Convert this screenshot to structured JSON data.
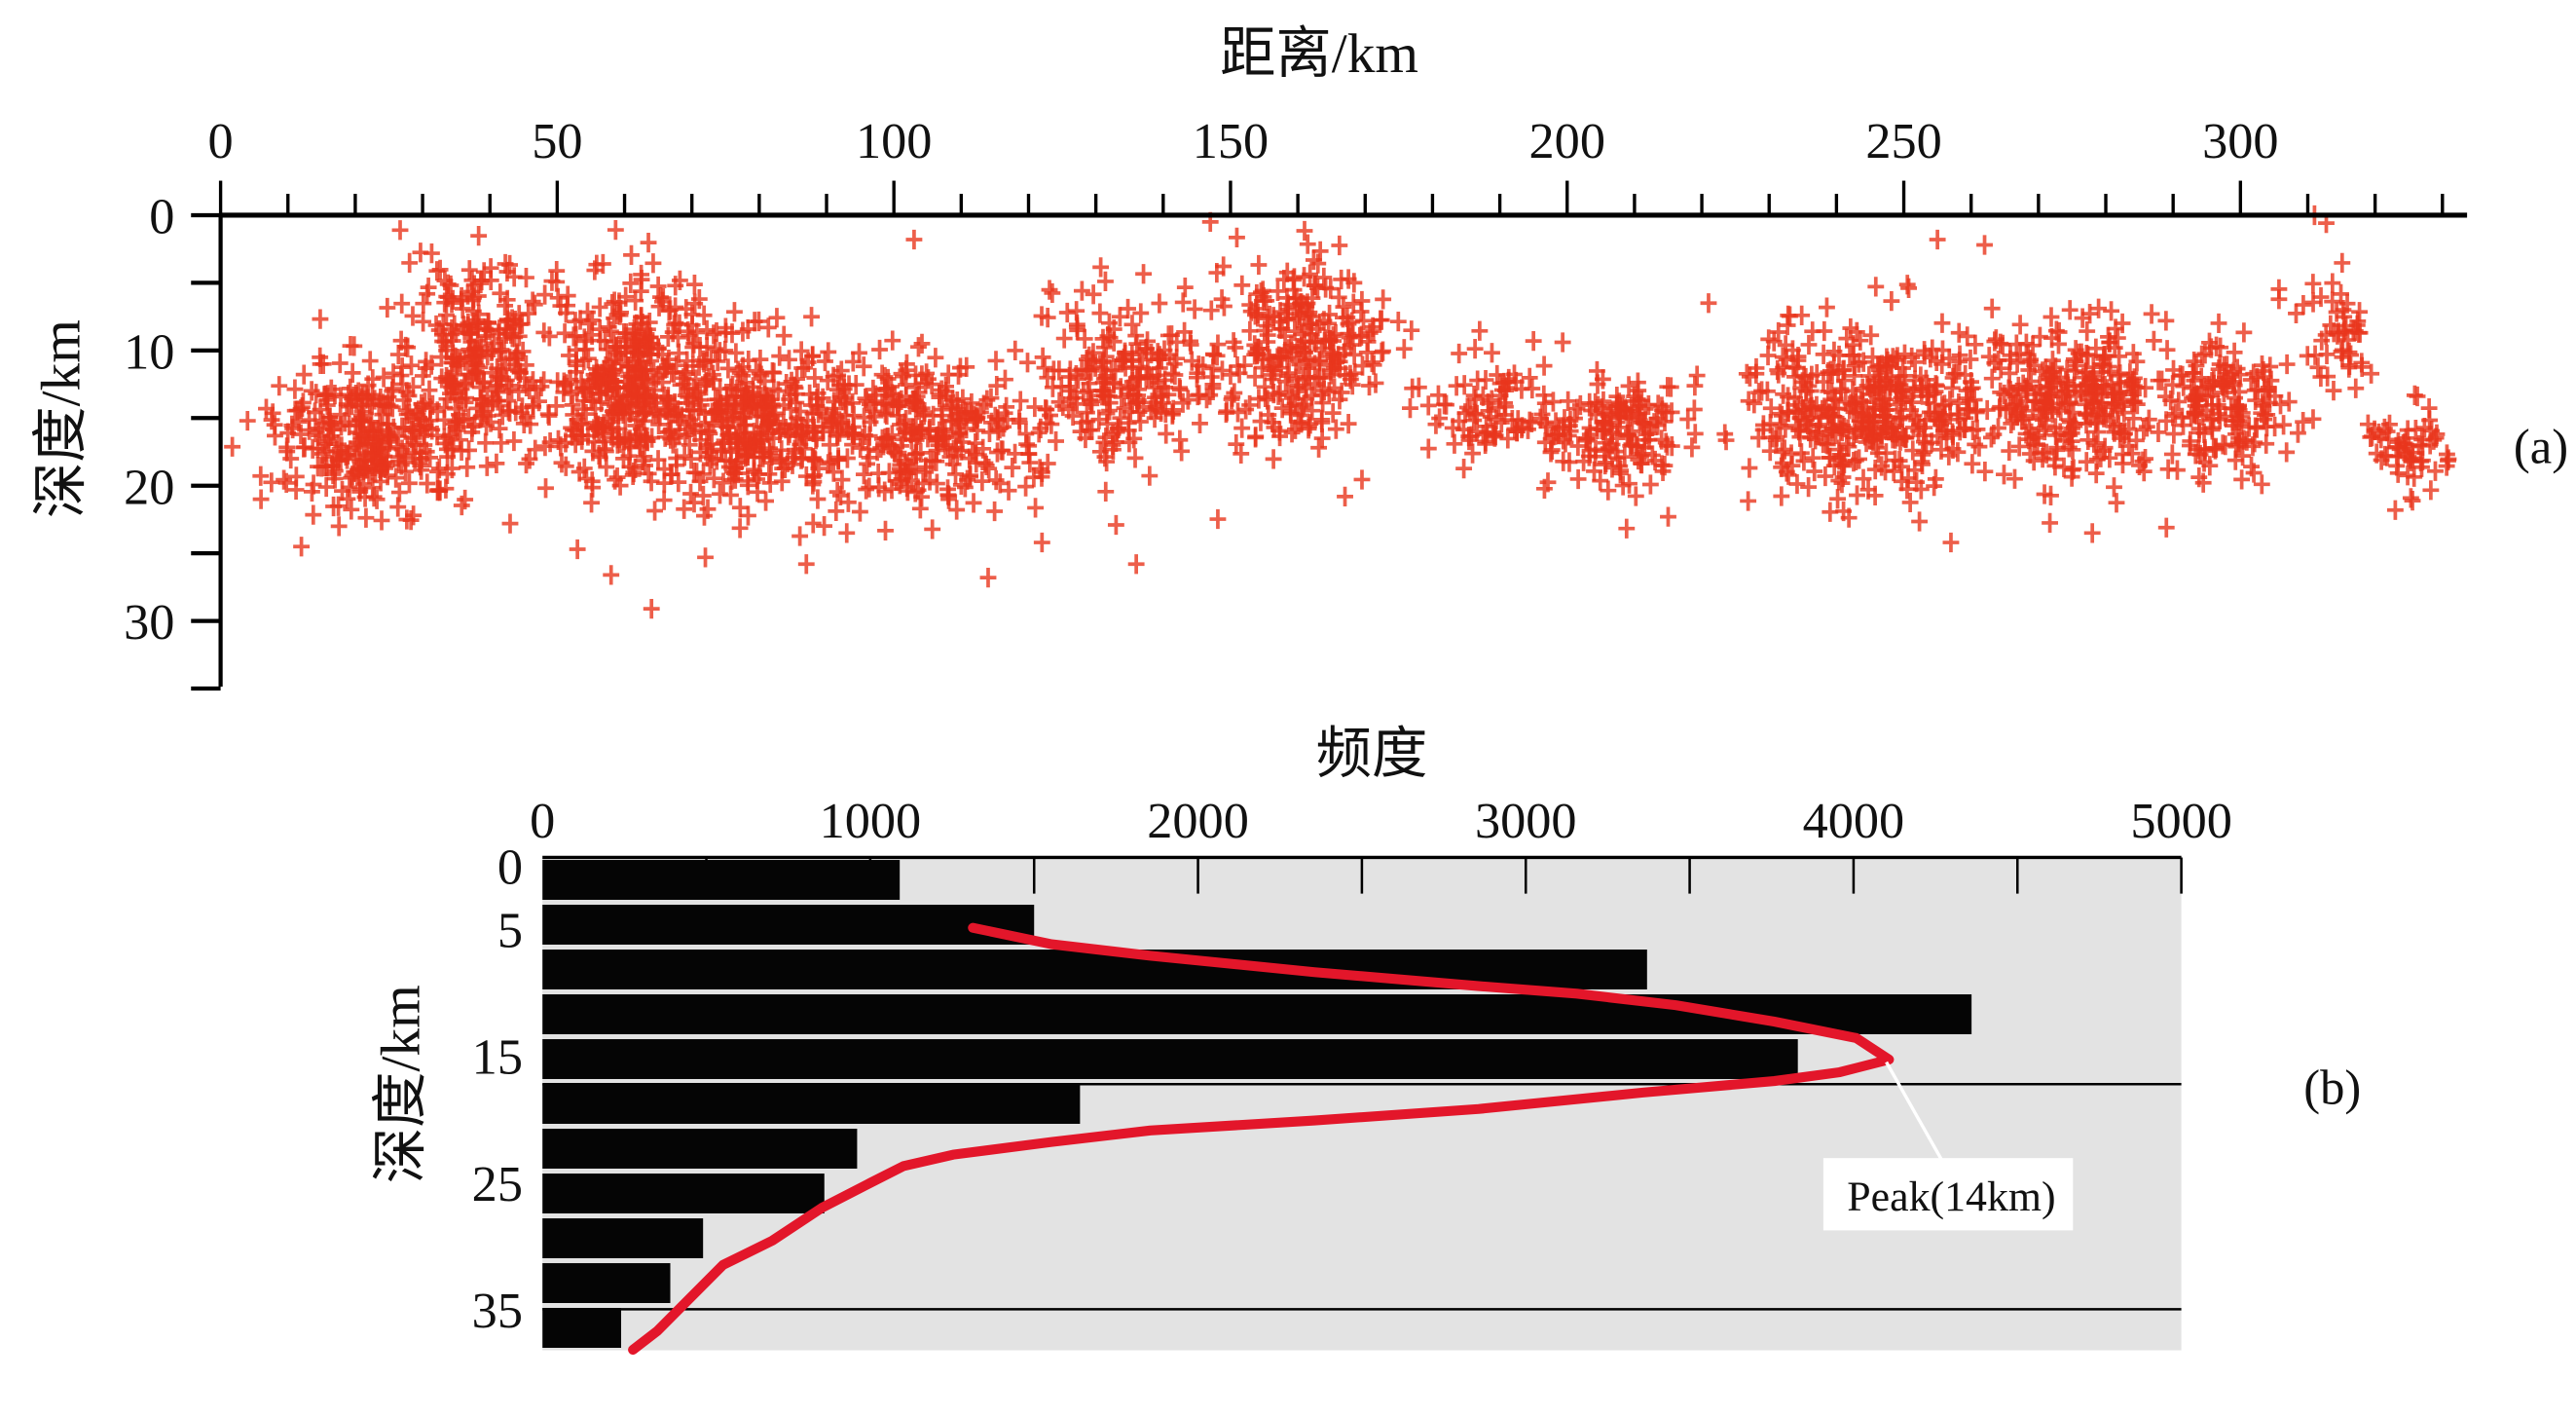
{
  "chart_data": [
    {
      "type": "scatter",
      "panel_label": "(a)",
      "title": "距离/km",
      "xlabel": "距离/km",
      "ylabel": "深度/km",
      "xlim": [
        0,
        333
      ],
      "ylim": [
        0,
        35
      ],
      "y_inverted": true,
      "x_axis_position": "top",
      "xticks": [
        "0",
        "50",
        "100",
        "150",
        "200",
        "250",
        "300"
      ],
      "yticks": [
        "0",
        "10",
        "20",
        "30"
      ],
      "marker": "+",
      "color": "#e8361d",
      "clusters": [
        {
          "x": 22,
          "depth": 16.5,
          "sx": 7,
          "sd": 2.6,
          "n": 320
        },
        {
          "x": 38,
          "depth": 10,
          "sx": 5,
          "sd": 3.5,
          "n": 240
        },
        {
          "x": 60,
          "depth": 12.5,
          "sx": 7,
          "sd": 4,
          "n": 450
        },
        {
          "x": 80,
          "depth": 15,
          "sx": 7,
          "sd": 3,
          "n": 320
        },
        {
          "x": 103,
          "depth": 16,
          "sx": 9,
          "sd": 2.8,
          "n": 330
        },
        {
          "x": 135,
          "depth": 12.5,
          "sx": 7,
          "sd": 3.2,
          "n": 230
        },
        {
          "x": 160,
          "depth": 10,
          "sx": 6,
          "sd": 3.5,
          "n": 280
        },
        {
          "x": 188,
          "depth": 14.5,
          "sx": 5,
          "sd": 2,
          "n": 90
        },
        {
          "x": 207,
          "depth": 16,
          "sx": 5,
          "sd": 2,
          "n": 160
        },
        {
          "x": 245,
          "depth": 14.5,
          "sx": 9,
          "sd": 3,
          "n": 430
        },
        {
          "x": 275,
          "depth": 13.5,
          "sx": 8,
          "sd": 2.8,
          "n": 320
        },
        {
          "x": 298,
          "depth": 14,
          "sx": 5,
          "sd": 2.5,
          "n": 160
        },
        {
          "x": 314,
          "depth": 9,
          "sx": 3,
          "sd": 3,
          "n": 50
        },
        {
          "x": 325,
          "depth": 17,
          "sx": 3,
          "sd": 1.5,
          "n": 60
        }
      ],
      "outliers": [
        [
          4,
          15.2
        ],
        [
          6,
          21
        ],
        [
          12,
          24.5
        ],
        [
          43,
          22.8
        ],
        [
          53,
          24.7
        ],
        [
          58,
          26.6
        ],
        [
          64,
          29.1
        ],
        [
          72,
          25.3
        ],
        [
          87,
          25.8
        ],
        [
          93,
          23.5
        ],
        [
          103,
          1.8
        ],
        [
          114,
          26.8
        ],
        [
          122,
          24.2
        ],
        [
          133,
          22.9
        ],
        [
          136,
          25.8
        ],
        [
          147,
          0.5
        ],
        [
          167,
          20.8
        ],
        [
          177,
          12.8
        ],
        [
          195,
          9.3
        ],
        [
          215,
          22.3
        ],
        [
          221,
          6.5
        ],
        [
          255,
          1.8
        ],
        [
          262,
          2.2
        ],
        [
          257,
          24.2
        ],
        [
          278,
          23.5
        ],
        [
          289,
          23.1
        ],
        [
          311,
          0
        ],
        [
          332,
          17.2
        ],
        [
          323,
          21.8
        ]
      ]
    },
    {
      "type": "bar",
      "orientation": "horizontal",
      "panel_label": "(b)",
      "title": "频度",
      "xlabel": "频度",
      "ylabel": "深度/km",
      "xlim": [
        0,
        5000
      ],
      "ylim": [
        0,
        38.5
      ],
      "y_inverted": true,
      "xticks": [
        "0",
        "1000",
        "2000",
        "3000",
        "4000",
        "5000"
      ],
      "yticks": [
        {
          "label": "0",
          "value": 0
        },
        {
          "label": "5",
          "value": 5
        },
        {
          "label": "15",
          "value": 15
        },
        {
          "label": "25",
          "value": 25
        },
        {
          "label": "35",
          "value": 35
        }
      ],
      "bin_width_km": 3.5,
      "categories": [
        "0-3.5",
        "3.5-7",
        "7-10.5",
        "10.5-14",
        "14-17.5",
        "17.5-21",
        "21-24.5",
        "24.5-28",
        "28-31.5",
        "31.5-35",
        "35-38.5"
      ],
      "values": [
        1090,
        1500,
        3370,
        4360,
        3830,
        1640,
        960,
        860,
        490,
        390,
        240
      ],
      "bar_color": "#050505",
      "background_color": "#e3e3e3",
      "curve": {
        "color": "#e3162a",
        "points": [
          [
            1313,
            4.9
          ],
          [
            1553,
            6.2
          ],
          [
            1854,
            7.1
          ],
          [
            2355,
            8.4
          ],
          [
            2856,
            9.5
          ],
          [
            3156,
            10.1
          ],
          [
            3457,
            11.0
          ],
          [
            3758,
            12.3
          ],
          [
            4008,
            13.6
          ],
          [
            4108,
            15.3
          ],
          [
            3958,
            16.3
          ],
          [
            3758,
            17.0
          ],
          [
            3357,
            17.9
          ],
          [
            2856,
            19.2
          ],
          [
            2355,
            20.1
          ],
          [
            1854,
            20.9
          ],
          [
            1553,
            21.8
          ],
          [
            1253,
            22.8
          ],
          [
            1102,
            23.7
          ],
          [
            1002,
            25.0
          ],
          [
            852,
            27.0
          ],
          [
            701,
            29.6
          ],
          [
            551,
            31.5
          ],
          [
            451,
            34.1
          ],
          [
            351,
            36.7
          ],
          [
            276,
            38.2
          ]
        ]
      },
      "annotation": {
        "text": "Peak(14km)",
        "target": [
          4100,
          15.5
        ]
      }
    }
  ]
}
